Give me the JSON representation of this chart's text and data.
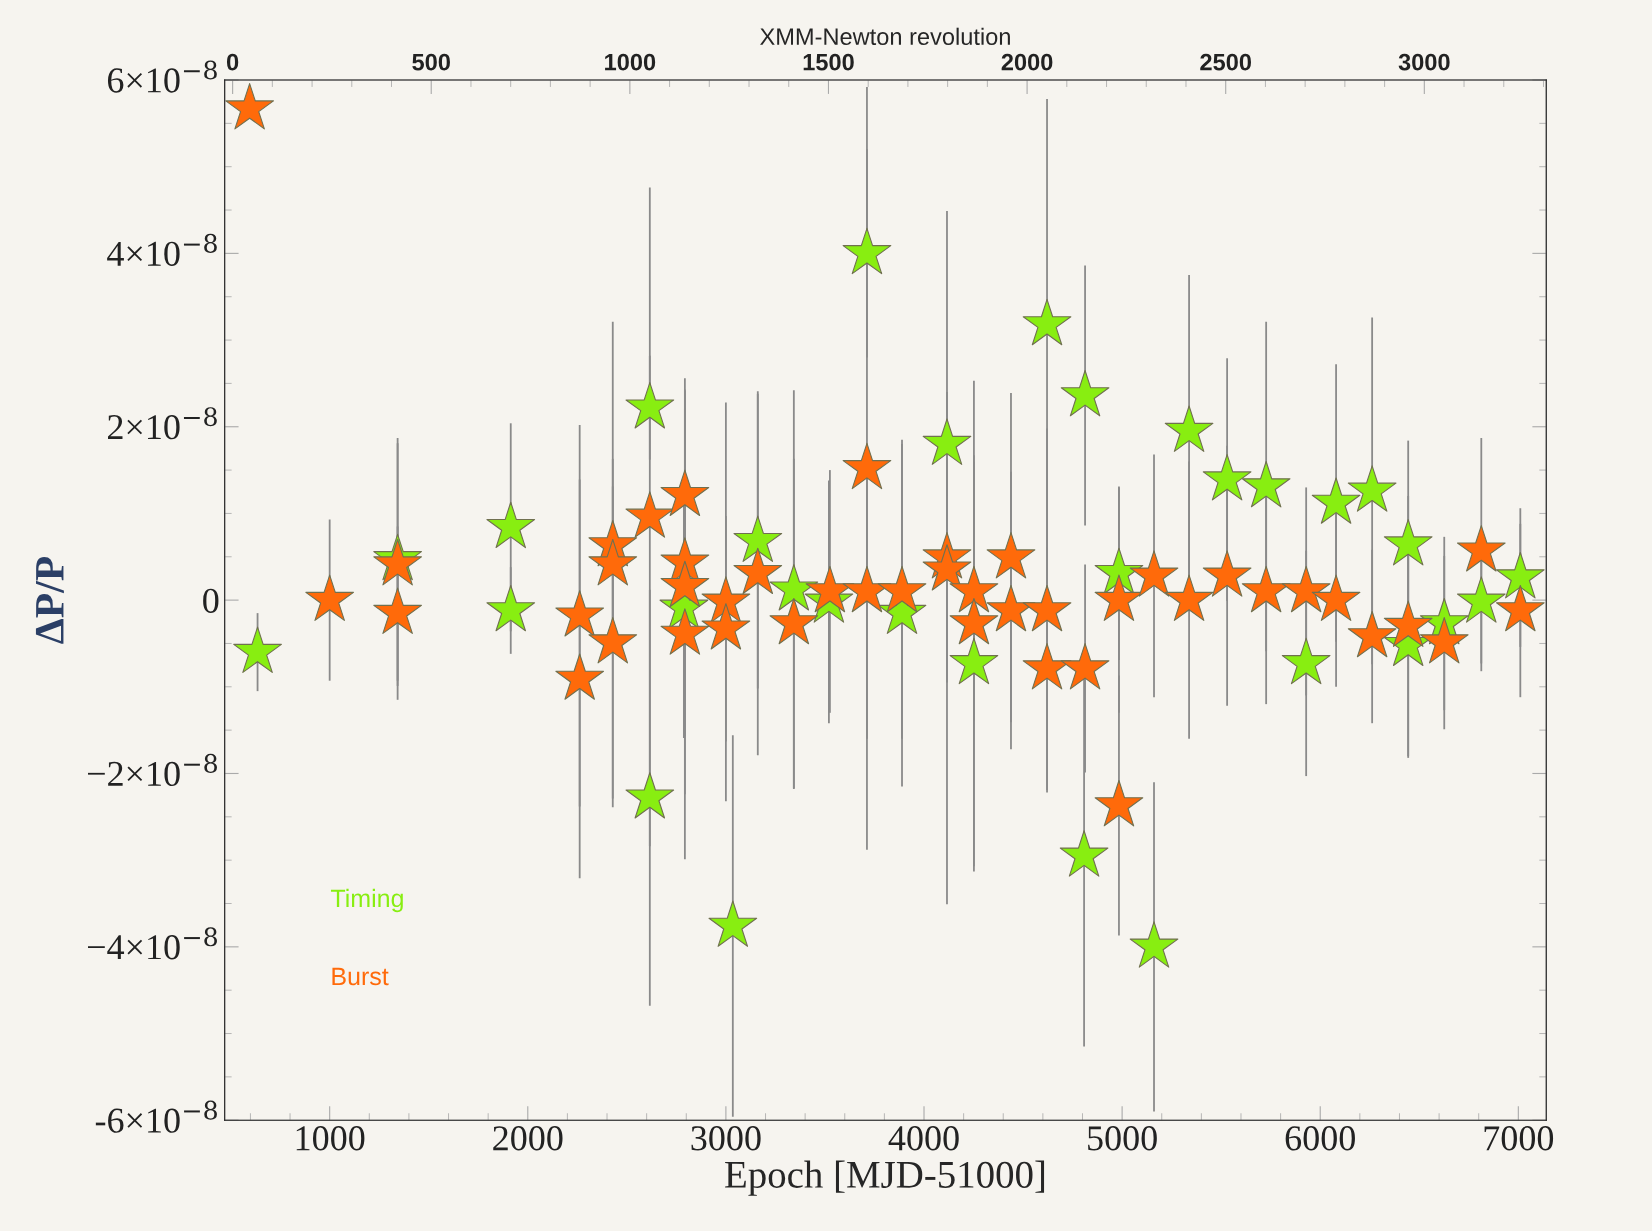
{
  "chart_data": {
    "type": "scatter",
    "xlabel": "Epoch [MJD-51000]",
    "ylabel": "ΔP/P",
    "x2label": "XMM-Newton revolution",
    "xlim": [
      470,
      7141
    ],
    "xticks": [
      1000,
      2000,
      3000,
      4000,
      5000,
      6000,
      7000
    ],
    "x2lim": [
      -20,
      3307
    ],
    "x2ticks": [
      0,
      500,
      1000,
      1500,
      2000,
      2500,
      3000
    ],
    "ylim": [
      -6e-08,
      6e-08
    ],
    "yticks": [
      {
        "value": -6e-08,
        "label": "-6×10$^{−8}$"
      },
      {
        "value": -4e-08,
        "label": "−4×10$^{−8}$"
      },
      {
        "value": -2e-08,
        "label": "−2×10$^{−8}$"
      },
      {
        "value": 0,
        "label": "0"
      },
      {
        "value": 2e-08,
        "label": "2×10$^{−8}$"
      },
      {
        "value": 4e-08,
        "label": "4×10$^{−8}$"
      },
      {
        "value": 6e-08,
        "label": "6×10$^{−8}$"
      }
    ],
    "marker": "star",
    "grid": false,
    "legend": "bottom left",
    "series": [
      {
        "name": "Timing",
        "color": "#88ee11",
        "x": [
          636,
          1343,
          1914,
          1914,
          2616,
          2616,
          2788,
          3035,
          3161,
          3343,
          3520,
          3712,
          3889,
          4116,
          4252,
          4621,
          4813,
          4808,
          4984,
          5161,
          5338,
          5530,
          5727,
          5929,
          6080,
          6262,
          6444,
          6444,
          6626,
          6813,
          7010
        ],
        "values": [
          -6e-09,
          4.7e-09,
          8.4e-09,
          -1.2e-09,
          2.22e-08,
          -2.28e-08,
          -9e-10,
          -3.76e-08,
          6.8e-09,
          1.2e-09,
          -2e-10,
          4e-08,
          -1.5e-09,
          1.8e-08,
          -7.3e-09,
          3.18e-08,
          2.36e-08,
          -2.95e-08,
          3.1e-09,
          -4e-08,
          1.95e-08,
          1.39e-08,
          1.31e-08,
          -7.3e-09,
          1.12e-08,
          1.26e-08,
          6.4e-09,
          -5.2e-09,
          -2.7e-09,
          -2e-10,
          2.6e-09
        ],
        "errors": [
          4.5e-09,
          1.4e-08,
          1.2e-08,
          5e-09,
          6e-09,
          2.4e-08,
          1.5e-08,
          2.2e-08,
          1.7e-08,
          2.3e-08,
          1.4e-08,
          1.2e-08,
          2e-08,
          6e-09,
          2.4e-08,
          2.6e-08,
          1.5e-08,
          2.2e-08,
          1e-08,
          1.9e-08,
          1.8e-08,
          1.4e-08,
          1.9e-08,
          1.3e-08,
          1.6e-08,
          2e-08,
          1.2e-08,
          1.3e-08,
          1e-08,
          8e-09,
          8e-09
        ]
      },
      {
        "name": "Burst",
        "color": "#ff6a0a",
        "x": [
          596,
          1000,
          1343,
          1343,
          2262,
          2262,
          2429,
          2429,
          2429,
          2616,
          2793,
          2793,
          2793,
          2793,
          3000,
          3000,
          3161,
          3343,
          3525,
          3712,
          3712,
          3889,
          4116,
          4116,
          4252,
          4252,
          4439,
          4439,
          4621,
          4621,
          4813,
          4984,
          4984,
          5161,
          5338,
          5530,
          5727,
          5929,
          6080,
          6262,
          6444,
          6626,
          6813,
          7010
        ],
        "values": [
          5.67e-08,
          0.0,
          4.1e-09,
          -1.5e-09,
          -1.8e-09,
          -9.1e-09,
          6.3e-09,
          4.1e-09,
          -4.9e-09,
          9.6e-09,
          1.21e-08,
          4.3e-09,
          1.6e-09,
          -3.9e-09,
          -2e-10,
          -3.3e-09,
          3.1e-09,
          -2.7e-09,
          1e-09,
          1.52e-08,
          1e-09,
          1e-09,
          4.9e-09,
          3.5e-09,
          1e-09,
          -2.7e-09,
          4.9e-09,
          -1.2e-09,
          -1.2e-09,
          -7.9e-09,
          -7.9e-09,
          -2.37e-08,
          0.0,
          2.8e-09,
          0.0,
          2.8e-09,
          1e-09,
          1e-09,
          0.0,
          -4.2e-09,
          -3e-09,
          -4.9e-09,
          5.7e-09,
          -1.2e-09
        ],
        "errors": [
          null,
          9.3e-09,
          1.4e-08,
          1e-08,
          2.2e-08,
          2.3e-08,
          1e-08,
          2.8e-08,
          1.8e-08,
          3.8e-08,
          1.2e-08,
          2e-08,
          2.4e-08,
          2.6e-08,
          2.3e-08,
          1.3e-08,
          2.1e-08,
          1.9e-08,
          1.4e-08,
          4.4e-08,
          1.7e-08,
          1.7e-08,
          4e-08,
          1.3e-08,
          1.5e-08,
          2.8e-08,
          1.9e-08,
          1.6e-08,
          2.1e-08,
          1.4e-08,
          1.2e-08,
          1.5e-08,
          1.3e-08,
          1.4e-08,
          1.6e-08,
          1.5e-08,
          1.3e-08,
          1.2e-08,
          1e-08,
          1e-08,
          1.5e-08,
          1e-08,
          1.3e-08,
          1e-08
        ]
      }
    ]
  }
}
